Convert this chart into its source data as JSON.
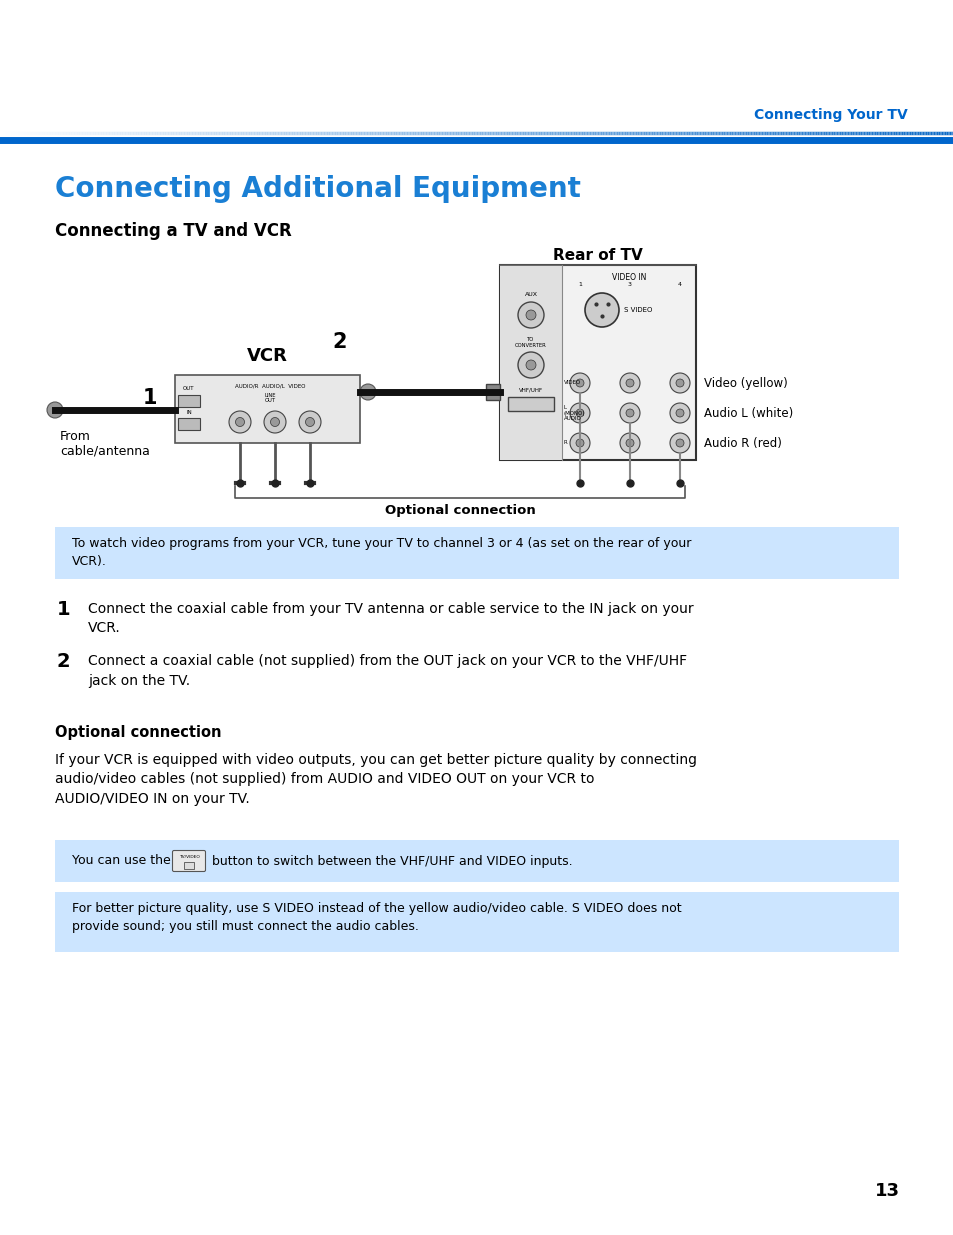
{
  "bg_color": "#ffffff",
  "header_text": "Connecting Your TV",
  "header_color": "#0066cc",
  "title": "Connecting Additional Equipment",
  "title_color": "#1a7fd4",
  "section_title": "Connecting a TV and VCR",
  "rear_tv_label": "Rear of TV",
  "number_2_label": "2",
  "vcr_label": "VCR",
  "number_1_label": "1",
  "from_label": "From\ncable/antenna",
  "optional_conn_label": "Optional connection",
  "video_yellow_label": "Video (yellow)",
  "audio_l_label": "Audio L (white)",
  "audio_r_label": "Audio R (red)",
  "note1_text": "To watch video programs from your VCR, tune your TV to channel 3 or 4 (as set on the rear of your\nVCR).",
  "note1_bg": "#cce5ff",
  "step1_num": "1",
  "step1_text": "Connect the coaxial cable from your TV antenna or cable service to the IN jack on your\nVCR.",
  "step2_num": "2",
  "step2_text": "Connect a coaxial cable (not supplied) from the OUT jack on your VCR to the VHF/UHF\njack on the TV.",
  "opt_conn_title": "Optional connection",
  "opt_conn_body": "If your VCR is equipped with video outputs, you can get better picture quality by connecting\naudio/video cables (not supplied) from AUDIO and VIDEO OUT on your VCR to\nAUDIO/VIDEO IN on your TV.",
  "note2_bg": "#cce5ff",
  "note3_text": "For better picture quality, use S VIDEO instead of the yellow audio/video cable. S VIDEO does not\nprovide sound; you still must connect the audio cables.",
  "note3_bg": "#cce5ff",
  "page_num": "13"
}
